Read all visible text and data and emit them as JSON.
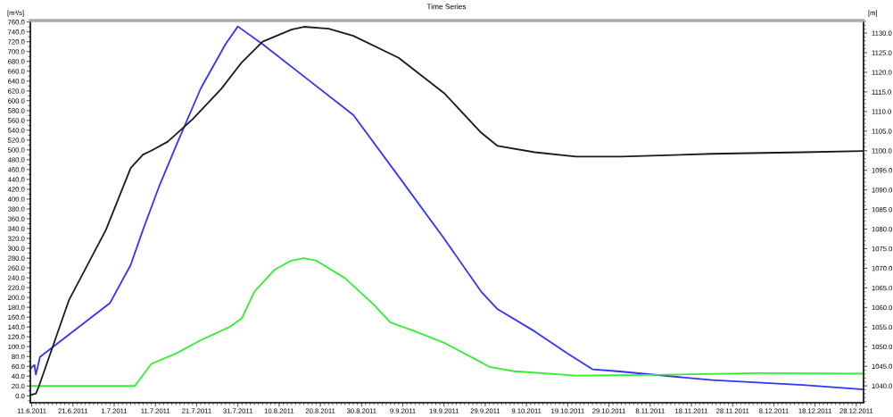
{
  "chart_data": {
    "type": "line",
    "title": "Time Series",
    "ylabel": "[m³/s]",
    "y2label": "[m]",
    "xlim": [
      "2011-06-10T16:00",
      "2011-12-29T18:00"
    ],
    "xticks": [
      {
        "value": "2011-06-11",
        "label": "11.6.2011"
      },
      {
        "value": "2011-06-21",
        "label": "21.6.2011"
      },
      {
        "value": "2011-07-01",
        "label": "1.7.2011"
      },
      {
        "value": "2011-07-11",
        "label": "11.7.2011"
      },
      {
        "value": "2011-07-21",
        "label": "21.7.2011"
      },
      {
        "value": "2011-07-31",
        "label": "31.7.2011"
      },
      {
        "value": "2011-08-10",
        "label": "10.8.2011"
      },
      {
        "value": "2011-08-20",
        "label": "20.8.2011"
      },
      {
        "value": "2011-08-30",
        "label": "30.8.2011"
      },
      {
        "value": "2011-09-09",
        "label": "9.9.2011"
      },
      {
        "value": "2011-09-19",
        "label": "19.9.2011"
      },
      {
        "value": "2011-09-29",
        "label": "29.9.2011"
      },
      {
        "value": "2011-10-09",
        "label": "9.10.2011"
      },
      {
        "value": "2011-10-19",
        "label": "19.10.2011"
      },
      {
        "value": "2011-10-29",
        "label": "29.10.2011"
      },
      {
        "value": "2011-11-08",
        "label": "8.11.2011"
      },
      {
        "value": "2011-11-18",
        "label": "18.11.2011"
      },
      {
        "value": "2011-11-28",
        "label": "28.11.2011"
      },
      {
        "value": "2011-12-08",
        "label": "8.12.2011"
      },
      {
        "value": "2011-12-18",
        "label": "18.12.2011"
      },
      {
        "value": "2011-12-28",
        "label": "28.12.2011"
      }
    ],
    "ylim": [
      -14,
      763
    ],
    "yticks": [
      {
        "value": 0,
        "label": "0.0"
      },
      {
        "value": 20,
        "label": "20.0"
      },
      {
        "value": 40,
        "label": "40.0"
      },
      {
        "value": 60,
        "label": "60.0"
      },
      {
        "value": 80,
        "label": "80.0"
      },
      {
        "value": 100,
        "label": "100.0"
      },
      {
        "value": 120,
        "label": "120.0"
      },
      {
        "value": 140,
        "label": "140.0"
      },
      {
        "value": 160,
        "label": "160.0"
      },
      {
        "value": 180,
        "label": "180.0"
      },
      {
        "value": 200,
        "label": "200.0"
      },
      {
        "value": 220,
        "label": "220.0"
      },
      {
        "value": 240,
        "label": "240.0"
      },
      {
        "value": 260,
        "label": "260.0"
      },
      {
        "value": 280,
        "label": "280.0"
      },
      {
        "value": 300,
        "label": "300.0"
      },
      {
        "value": 320,
        "label": "320.0"
      },
      {
        "value": 340,
        "label": "340.0"
      },
      {
        "value": 360,
        "label": "360.0"
      },
      {
        "value": 380,
        "label": "380.0"
      },
      {
        "value": 400,
        "label": "400.0"
      },
      {
        "value": 420,
        "label": "420.0"
      },
      {
        "value": 440,
        "label": "440.0"
      },
      {
        "value": 460,
        "label": "460.0"
      },
      {
        "value": 480,
        "label": "480.0"
      },
      {
        "value": 500,
        "label": "500.0"
      },
      {
        "value": 520,
        "label": "520.0"
      },
      {
        "value": 540,
        "label": "540.0"
      },
      {
        "value": 560,
        "label": "560.0"
      },
      {
        "value": 580,
        "label": "580.0"
      },
      {
        "value": 600,
        "label": "600.0"
      },
      {
        "value": 620,
        "label": "620.0"
      },
      {
        "value": 640,
        "label": "640.0"
      },
      {
        "value": 660,
        "label": "660.0"
      },
      {
        "value": 680,
        "label": "680.0"
      },
      {
        "value": 700,
        "label": "700.0"
      },
      {
        "value": 720,
        "label": "720.0"
      },
      {
        "value": 740,
        "label": "740.0"
      },
      {
        "value": 760,
        "label": "760.0"
      }
    ],
    "y2lim": [
      1035.7,
      1133.2
    ],
    "y2ticks": [
      {
        "value": 1040,
        "label": "1040.0"
      },
      {
        "value": 1045,
        "label": "1045.0"
      },
      {
        "value": 1050,
        "label": "1050.0"
      },
      {
        "value": 1055,
        "label": "1055.0"
      },
      {
        "value": 1060,
        "label": "1060.0"
      },
      {
        "value": 1065,
        "label": "1065.0"
      },
      {
        "value": 1070,
        "label": "1070.0"
      },
      {
        "value": 1075,
        "label": "1075.0"
      },
      {
        "value": 1080,
        "label": "1080.0"
      },
      {
        "value": 1085,
        "label": "1085.0"
      },
      {
        "value": 1090,
        "label": "1090.0"
      },
      {
        "value": 1095,
        "label": "1095.0"
      },
      {
        "value": 1100,
        "label": "1100.0"
      },
      {
        "value": 1105,
        "label": "1105.0"
      },
      {
        "value": 1110,
        "label": "1110.0"
      },
      {
        "value": 1115,
        "label": "1115.0"
      },
      {
        "value": 1120,
        "label": "1120.0"
      },
      {
        "value": 1125,
        "label": "1125.0"
      },
      {
        "value": 1130,
        "label": "1130.0"
      }
    ],
    "grid": false,
    "line_style": "solid",
    "series": [
      {
        "color": "#3333ff",
        "x": [
          "2011-06-10T18:00",
          "2011-06-11T16:00",
          "2011-06-12",
          "2011-06-13",
          "2011-06-30",
          "2011-07-05",
          "2011-07-08",
          "2011-07-12",
          "2011-07-16",
          "2011-07-22",
          "2011-07-28",
          "2011-07-31",
          "2011-08-06",
          "2011-08-17",
          "2011-08-28",
          "2011-09-08",
          "2011-09-19",
          "2011-09-28",
          "2011-10-02",
          "2011-10-11",
          "2011-10-19",
          "2011-10-25",
          "2011-10-31",
          "2011-11-23",
          "2011-12-15",
          "2011-12-29T17:00"
        ],
        "values": [
          56,
          63,
          43,
          79,
          189,
          266,
          338,
          428,
          508,
          625,
          715,
          751,
          715,
          643,
          571,
          446,
          320,
          212,
          176,
          131,
          86,
          54,
          50,
          32,
          22,
          13
        ]
      },
      {
        "color": "#33ee33",
        "x": [
          "2011-06-10T18:00",
          "2011-07-06",
          "2011-07-10",
          "2011-07-16",
          "2011-07-22",
          "2011-07-29",
          "2011-08-01",
          "2011-08-04",
          "2011-08-09",
          "2011-08-13",
          "2011-08-16",
          "2011-08-19",
          "2011-08-26",
          "2011-09-02",
          "2011-09-06",
          "2011-09-12",
          "2011-09-19",
          "2011-09-26",
          "2011-09-30",
          "2011-10-06",
          "2011-10-21",
          "2011-11-12",
          "2011-12-04",
          "2011-12-29T17:00"
        ],
        "values": [
          20,
          20,
          65,
          86,
          113,
          140,
          158,
          212,
          257,
          275,
          280,
          275,
          239,
          185,
          149,
          131,
          108,
          77,
          59,
          50,
          41,
          43,
          46,
          45
        ]
      },
      {
        "color": "#1a1a1a",
        "axis": "y2",
        "x": [
          "2011-06-10T18:00",
          "2011-06-12",
          "2011-06-12T17:00",
          "2011-06-20",
          "2011-06-29",
          "2011-07-05",
          "2011-07-08",
          "2011-07-10",
          "2011-07-14",
          "2011-07-20",
          "2011-07-27",
          "2011-08-01",
          "2011-08-06",
          "2011-08-13",
          "2011-08-16",
          "2011-08-22",
          "2011-08-28",
          "2011-09-08",
          "2011-09-19",
          "2011-09-28",
          "2011-10-02",
          "2011-10-11",
          "2011-10-21",
          "2011-11-01",
          "2011-11-23",
          "2011-12-15",
          "2011-12-29T17:00"
        ],
        "values": [
          1037.7,
          1038,
          1039.8,
          1061.8,
          1079.8,
          1095.6,
          1099,
          1100,
          1102.3,
          1108,
          1115.8,
          1122.6,
          1127.8,
          1130.9,
          1131.6,
          1131.1,
          1129.3,
          1123.7,
          1114.7,
          1104.6,
          1101.2,
          1099.6,
          1098.5,
          1098.5,
          1099.2,
          1099.6,
          1099.9
        ]
      }
    ]
  }
}
